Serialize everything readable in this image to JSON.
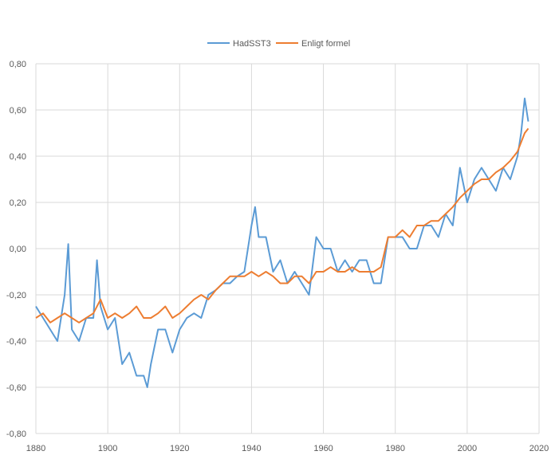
{
  "chart_data": {
    "type": "line",
    "title": "",
    "xlabel": "",
    "ylabel": "",
    "xlim": [
      1880,
      2020
    ],
    "ylim": [
      -0.8,
      0.8
    ],
    "x_ticks": [
      1880,
      1900,
      1920,
      1940,
      1960,
      1980,
      2000,
      2020
    ],
    "x_tick_labels": [
      "1880",
      "1900",
      "1920",
      "1940",
      "1960",
      "1980",
      "2000",
      "2020"
    ],
    "y_ticks": [
      -0.8,
      -0.6,
      -0.4,
      -0.2,
      0.0,
      0.2,
      0.4,
      0.6,
      0.8
    ],
    "y_tick_labels": [
      "-0,80",
      "-0,60",
      "-0,40",
      "-0,20",
      "0,00",
      "0,20",
      "0,40",
      "0,60",
      "0,80"
    ],
    "grid": "horizontal-and-vertical",
    "legend_position": "top-center",
    "series": [
      {
        "name": "HadSST3",
        "color": "#5B9BD5",
        "x": [
          1880,
          1882,
          1884,
          1886,
          1888,
          1889,
          1890,
          1892,
          1894,
          1896,
          1897,
          1898,
          1900,
          1902,
          1904,
          1906,
          1908,
          1910,
          1911,
          1912,
          1914,
          1916,
          1918,
          1920,
          1922,
          1924,
          1926,
          1928,
          1930,
          1932,
          1934,
          1936,
          1938,
          1940,
          1941,
          1942,
          1944,
          1946,
          1948,
          1950,
          1952,
          1954,
          1956,
          1958,
          1960,
          1962,
          1964,
          1966,
          1968,
          1970,
          1972,
          1974,
          1976,
          1978,
          1980,
          1982,
          1984,
          1986,
          1988,
          1990,
          1992,
          1994,
          1996,
          1998,
          2000,
          2002,
          2004,
          2006,
          2008,
          2010,
          2012,
          2014,
          2015,
          2016,
          2017
        ],
        "y": [
          -0.25,
          -0.3,
          -0.35,
          -0.4,
          -0.2,
          0.02,
          -0.35,
          -0.4,
          -0.3,
          -0.3,
          -0.05,
          -0.25,
          -0.35,
          -0.3,
          -0.5,
          -0.45,
          -0.55,
          -0.55,
          -0.6,
          -0.5,
          -0.35,
          -0.35,
          -0.45,
          -0.35,
          -0.3,
          -0.28,
          -0.3,
          -0.2,
          -0.18,
          -0.15,
          -0.15,
          -0.12,
          -0.1,
          0.1,
          0.18,
          0.05,
          0.05,
          -0.1,
          -0.05,
          -0.15,
          -0.1,
          -0.15,
          -0.2,
          0.05,
          0.0,
          0.0,
          -0.1,
          -0.05,
          -0.1,
          -0.05,
          -0.05,
          -0.15,
          -0.15,
          0.05,
          0.05,
          0.05,
          0.0,
          0.0,
          0.1,
          0.1,
          0.05,
          0.15,
          0.1,
          0.35,
          0.2,
          0.3,
          0.35,
          0.3,
          0.25,
          0.35,
          0.3,
          0.4,
          0.5,
          0.65,
          0.55
        ]
      },
      {
        "name": "Enligt formel",
        "color": "#ED7D31",
        "x": [
          1880,
          1882,
          1884,
          1886,
          1888,
          1890,
          1892,
          1894,
          1896,
          1898,
          1900,
          1902,
          1904,
          1906,
          1908,
          1910,
          1912,
          1914,
          1916,
          1918,
          1920,
          1922,
          1924,
          1926,
          1928,
          1930,
          1932,
          1934,
          1936,
          1938,
          1940,
          1942,
          1944,
          1946,
          1948,
          1950,
          1952,
          1954,
          1956,
          1958,
          1960,
          1962,
          1964,
          1966,
          1968,
          1970,
          1972,
          1974,
          1976,
          1978,
          1980,
          1982,
          1984,
          1986,
          1988,
          1990,
          1992,
          1994,
          1996,
          1998,
          2000,
          2002,
          2004,
          2006,
          2008,
          2010,
          2012,
          2014,
          2016,
          2017
        ],
        "y": [
          -0.3,
          -0.28,
          -0.32,
          -0.3,
          -0.28,
          -0.3,
          -0.32,
          -0.3,
          -0.28,
          -0.22,
          -0.3,
          -0.28,
          -0.3,
          -0.28,
          -0.25,
          -0.3,
          -0.3,
          -0.28,
          -0.25,
          -0.3,
          -0.28,
          -0.25,
          -0.22,
          -0.2,
          -0.22,
          -0.18,
          -0.15,
          -0.12,
          -0.12,
          -0.12,
          -0.1,
          -0.12,
          -0.1,
          -0.12,
          -0.15,
          -0.15,
          -0.12,
          -0.12,
          -0.15,
          -0.1,
          -0.1,
          -0.08,
          -0.1,
          -0.1,
          -0.08,
          -0.1,
          -0.1,
          -0.1,
          -0.08,
          0.05,
          0.05,
          0.08,
          0.05,
          0.1,
          0.1,
          0.12,
          0.12,
          0.15,
          0.18,
          0.22,
          0.25,
          0.28,
          0.3,
          0.3,
          0.33,
          0.35,
          0.38,
          0.42,
          0.5,
          0.52
        ]
      }
    ]
  }
}
